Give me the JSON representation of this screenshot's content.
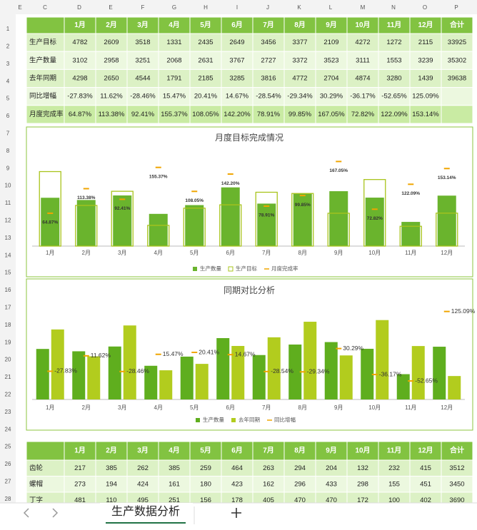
{
  "column_letters": [
    "E",
    "C",
    "D",
    "E",
    "F",
    "G",
    "H",
    "I",
    "J",
    "K",
    "L",
    "M",
    "N",
    "O",
    "P"
  ],
  "row_numbers": [
    1,
    2,
    3,
    4,
    5,
    6,
    7,
    8,
    9,
    10,
    11,
    12,
    13,
    14,
    15,
    16,
    17,
    18,
    19,
    20,
    21,
    22,
    23,
    24,
    25,
    26,
    27,
    28
  ],
  "table_top": {
    "months": [
      "1月",
      "2月",
      "3月",
      "4月",
      "5月",
      "6月",
      "7月",
      "8月",
      "9月",
      "10月",
      "11月",
      "12月"
    ],
    "total_label": "合计",
    "rows": [
      {
        "label": "生产目标",
        "cells": [
          4782,
          2609,
          3518,
          1331,
          2435,
          2649,
          3456,
          3377,
          2109,
          4272,
          1272,
          2115,
          33925
        ]
      },
      {
        "label": "生产数量",
        "cells": [
          3102,
          2958,
          3251,
          2068,
          2631,
          3767,
          2727,
          3372,
          3523,
          3111,
          1553,
          3239,
          35302
        ]
      },
      {
        "label": "去年同期",
        "cells": [
          4298,
          2650,
          4544,
          1791,
          2185,
          3285,
          3816,
          4772,
          2704,
          4874,
          3280,
          1439,
          39638
        ]
      },
      {
        "label": "同比增幅",
        "cells": [
          "-27.83%",
          "11.62%",
          "-28.46%",
          "15.47%",
          "20.41%",
          "14.67%",
          "-28.54%",
          "-29.34%",
          "30.29%",
          "-36.17%",
          "-52.65%",
          "125.09%"
        ]
      },
      {
        "label": "月度完成率",
        "cells": [
          "64.87%",
          "113.38%",
          "92.41%",
          "155.37%",
          "108.05%",
          "142.20%",
          "78.91%",
          "99.85%",
          "167.05%",
          "72.82%",
          "122.09%",
          "153.14%"
        ]
      }
    ]
  },
  "table_bottom": {
    "months": [
      "1月",
      "2月",
      "3月",
      "4月",
      "5月",
      "6月",
      "7月",
      "8月",
      "9月",
      "10月",
      "11月",
      "12月"
    ],
    "total_label": "合计",
    "rows": [
      {
        "label": "齿轮",
        "cells": [
          217,
          385,
          262,
          385,
          259,
          464,
          263,
          294,
          204,
          132,
          232,
          415,
          3512
        ]
      },
      {
        "label": "螺帽",
        "cells": [
          273,
          194,
          424,
          161,
          180,
          423,
          162,
          296,
          433,
          298,
          155,
          451,
          3450
        ]
      },
      {
        "label": "丁字",
        "cells": [
          481,
          110,
          495,
          251,
          156,
          178,
          405,
          470,
          470,
          172,
          100,
          402,
          3690
        ]
      }
    ]
  },
  "chart_data": [
    {
      "type": "bar",
      "title": "月度目标完成情况",
      "bar_mode": "overlap",
      "legend": "bottom",
      "categories": [
        "1月",
        "2月",
        "3月",
        "4月",
        "5月",
        "6月",
        "7月",
        "8月",
        "9月",
        "10月",
        "11月",
        "12月"
      ],
      "ylim": [
        0,
        6500
      ],
      "y2lim": [
        0,
        200
      ],
      "series": [
        {
          "name": "生产数量",
          "color": "#6ab42d",
          "style": "filled",
          "values": [
            3102,
            2958,
            3251,
            2068,
            2631,
            3767,
            2727,
            3372,
            3523,
            3111,
            1553,
            3239
          ]
        },
        {
          "name": "生产目标",
          "color": "#a9c41c",
          "style": "outline",
          "values": [
            4782,
            2609,
            3518,
            1331,
            2435,
            2649,
            3456,
            3377,
            2109,
            4272,
            1272,
            2115
          ]
        },
        {
          "name": "月度完成率",
          "color": "#f0a500",
          "style": "marker",
          "axis": "y2",
          "label_position": "below",
          "values": [
            64.87,
            113.38,
            92.41,
            155.37,
            108.05,
            142.2,
            78.91,
            99.85,
            167.05,
            72.82,
            122.09,
            153.14
          ],
          "value_labels": [
            "64.87%",
            "113.38%",
            "92.41%",
            "155.37%",
            "108.05%",
            "142.20%",
            "78.91%",
            "99.85%",
            "167.05%",
            "72.82%",
            "122.09%",
            "153.14%"
          ]
        }
      ]
    },
    {
      "type": "bar",
      "title": "同期对比分析",
      "bar_mode": "group",
      "legend": "bottom",
      "categories": [
        "1月",
        "2月",
        "3月",
        "4月",
        "5月",
        "6月",
        "7月",
        "8月",
        "9月",
        "10月",
        "11月",
        "12月"
      ],
      "ylim": [
        0,
        6000
      ],
      "y2lim": [
        -100,
        150
      ],
      "series": [
        {
          "name": "生产数量",
          "color": "#5fae1e",
          "style": "filled",
          "values": [
            3102,
            2958,
            3251,
            2068,
            2631,
            3767,
            2727,
            3372,
            3523,
            3111,
            1553,
            3239
          ]
        },
        {
          "name": "去年同期",
          "color": "#b2cc1e",
          "style": "filled",
          "values": [
            4298,
            2650,
            4544,
            1791,
            2185,
            3285,
            3816,
            4772,
            2704,
            4874,
            3280,
            1439
          ]
        },
        {
          "name": "同比增幅",
          "color": "#f0a500",
          "style": "marker",
          "axis": "y2",
          "label_position": "right",
          "values": [
            -27.83,
            11.62,
            -28.46,
            15.47,
            20.41,
            14.67,
            -28.54,
            -29.34,
            30.29,
            -36.17,
            -52.65,
            125.09
          ],
          "value_labels": [
            "-27.83%",
            "11.62%",
            "-28.46%",
            "15.47%",
            "20.41%",
            "14.67%",
            "-28.54%",
            "-29.34%",
            "30.29%",
            "-36.17%",
            "-52.65%",
            "125.09%"
          ]
        }
      ]
    }
  ],
  "sheet_tab": "生产数据分析"
}
